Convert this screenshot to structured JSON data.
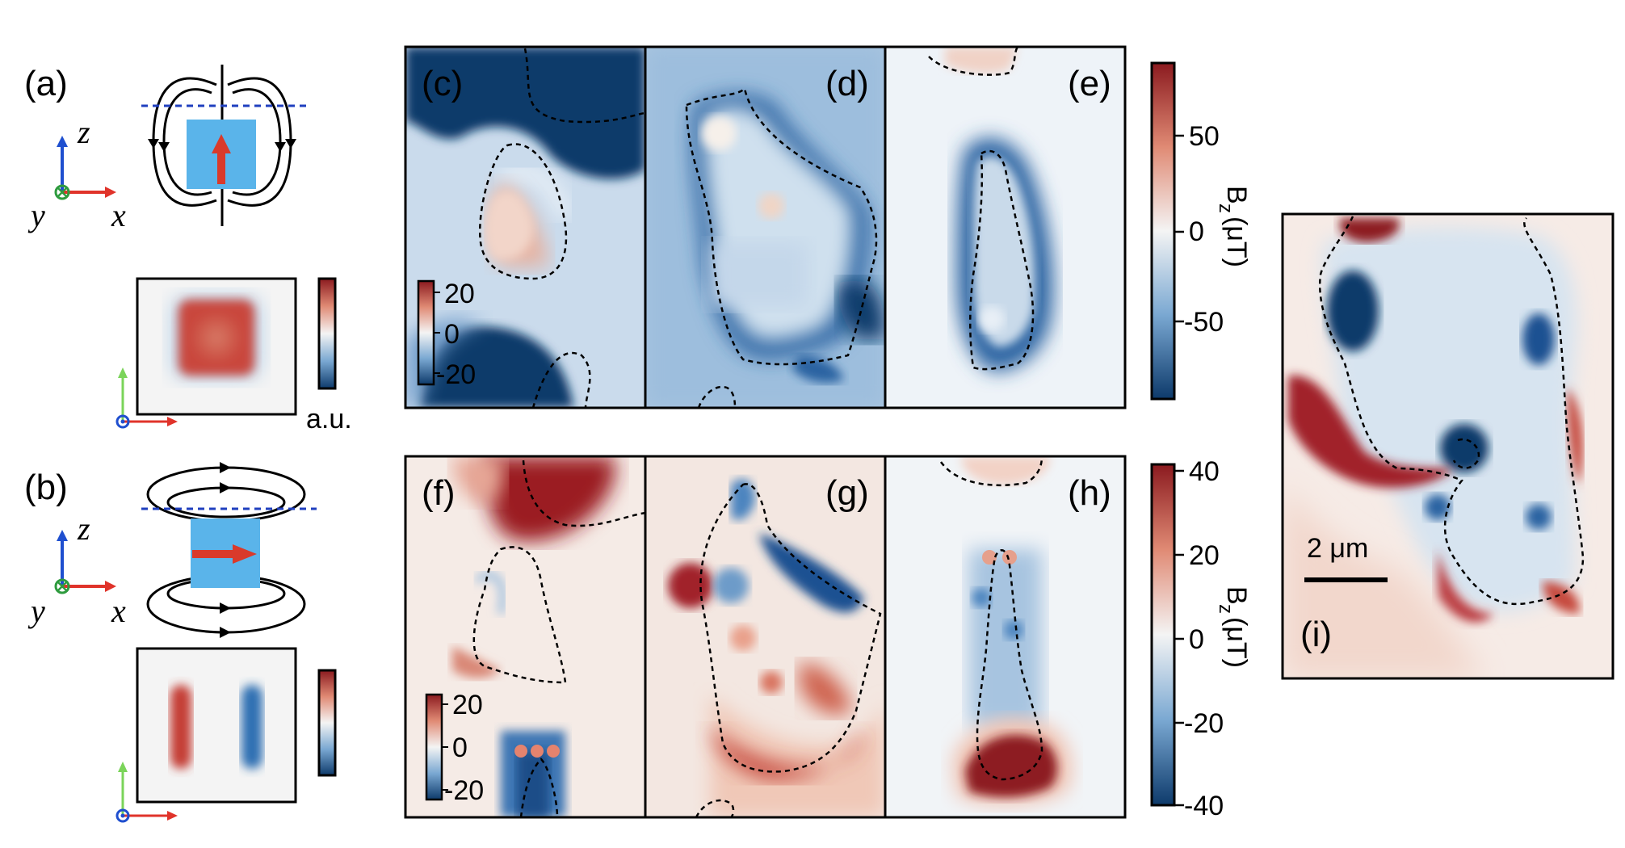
{
  "figure": {
    "panel_labels": {
      "a": "(a)",
      "b": "(b)",
      "c": "(c)",
      "d": "(d)",
      "e": "(e)",
      "f": "(f)",
      "g": "(g)",
      "h": "(h)",
      "i": "(i)"
    },
    "axes": {
      "z": "z",
      "y": "y",
      "x": "x"
    },
    "au_label": "a.u.",
    "inset_scale_top": {
      "ticks": [
        "20",
        "0",
        "-20"
      ]
    },
    "inset_scale_bottom": {
      "ticks": [
        "20",
        "0",
        "-20"
      ]
    },
    "colorbar_top": {
      "label": "B",
      "label_sub": "z",
      "label_unit": "(μT)",
      "ticks": [
        "50",
        "0",
        "-50"
      ]
    },
    "colorbar_bottom": {
      "label": "B",
      "label_sub": "z",
      "label_unit": "(μT)",
      "ticks": [
        "40",
        "20",
        "0",
        "-20",
        "-40"
      ]
    },
    "scale_bar": "2 μm",
    "colors": {
      "dark_blue": "#0d3a6b",
      "mid_blue": "#5b91c4",
      "light_blue": "#dde9f3",
      "white": "#f6f6f6",
      "light_red": "#f1c3ad",
      "red": "#c4493f",
      "dark_red": "#8b1a1f",
      "axis_blue": "#1f4fcf",
      "axis_red": "#e0332a",
      "axis_green": "#2e9b3e",
      "axis_lightgreen": "#7bd45a",
      "dipole_box": "#5ab4ea",
      "arrow_red": "#d93a2b"
    }
  }
}
